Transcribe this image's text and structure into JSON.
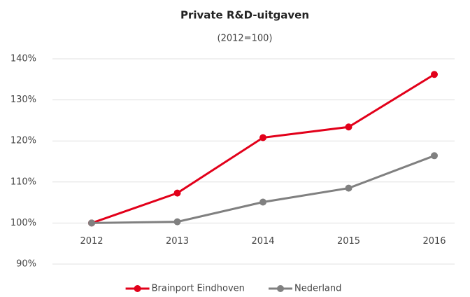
{
  "chart_data": {
    "type": "line",
    "title": "Private R&D-uitgaven",
    "subtitle": "(2012=100)",
    "categories": [
      "2012",
      "2013",
      "2014",
      "2015",
      "2016"
    ],
    "series": [
      {
        "name": "Brainport Eindhoven",
        "color": "#e2001a",
        "values": [
          100,
          107.3,
          120.8,
          123.4,
          136.2
        ]
      },
      {
        "name": "Nederland",
        "color": "#808080",
        "values": [
          100,
          100.3,
          105.1,
          108.5,
          116.4
        ]
      }
    ],
    "ylim": [
      90,
      140
    ],
    "yticks": [
      {
        "value": 90,
        "label": "90%"
      },
      {
        "value": 100,
        "label": "100%"
      },
      {
        "value": 110,
        "label": "110%"
      },
      {
        "value": 120,
        "label": "120%"
      },
      {
        "value": 130,
        "label": "130%"
      },
      {
        "value": 140,
        "label": "140%"
      }
    ],
    "grid": true,
    "legend": "bottom"
  }
}
